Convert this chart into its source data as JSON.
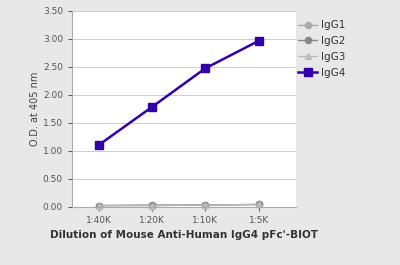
{
  "x_labels": [
    "1:40K",
    "1:20K",
    "1:10K",
    "1:5K"
  ],
  "x_values": [
    1,
    2,
    3,
    4
  ],
  "series": {
    "IgG1": {
      "values": [
        0.02,
        0.02,
        0.03,
        0.04
      ],
      "color": "#aaaaaa",
      "marker": "o",
      "linewidth": 1.0,
      "markersize": 4.5,
      "linestyle": "-"
    },
    "IgG2": {
      "values": [
        0.02,
        0.03,
        0.03,
        0.04
      ],
      "color": "#888888",
      "marker": "o",
      "linewidth": 1.0,
      "markersize": 4.5,
      "linestyle": "-"
    },
    "IgG3": {
      "values": [
        0.02,
        0.02,
        0.03,
        0.04
      ],
      "color": "#bbbbbb",
      "marker": "^",
      "linewidth": 1.0,
      "markersize": 4.5,
      "linestyle": "-"
    },
    "IgG4": {
      "values": [
        1.1,
        1.78,
        2.47,
        2.96
      ],
      "color": "#3300aa",
      "marker": "s",
      "linewidth": 1.8,
      "markersize": 5.5,
      "linestyle": "-"
    }
  },
  "ylabel": "O.D. at 405 nm",
  "xlabel": "Dilution of Mouse Anti-Human IgG4 pFc'-BIOT",
  "ylim": [
    0.0,
    3.5
  ],
  "yticks": [
    0.0,
    0.5,
    1.0,
    1.5,
    2.0,
    2.5,
    3.0,
    3.5
  ],
  "xlim": [
    0.5,
    4.7
  ],
  "bg_color": "#e8e8e8",
  "plot_bg_color": "#ffffff",
  "grid_color": "#cccccc",
  "legend_order": [
    "IgG1",
    "IgG2",
    "IgG3",
    "IgG4"
  ],
  "axis_fontsize": 7.0,
  "tick_fontsize": 6.5,
  "legend_fontsize": 7.5,
  "xlabel_fontsize": 7.5
}
